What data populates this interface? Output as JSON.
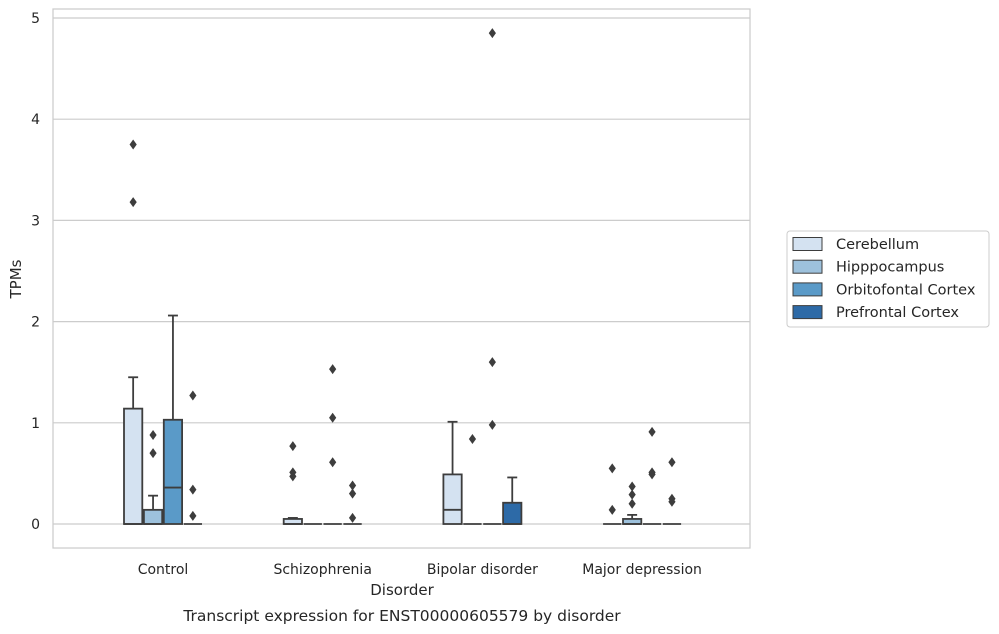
{
  "chart_data": {
    "type": "box",
    "title": "",
    "caption": "Transcript expression for ENST00000605579 by disorder",
    "xlabel": "Disorder",
    "ylabel": "TPMs",
    "ylim": [
      -0.23,
      5.1
    ],
    "yticks": [
      0,
      1,
      2,
      3,
      4,
      5
    ],
    "ytick_labels": [
      "0",
      "1",
      "2",
      "3",
      "4",
      "5"
    ],
    "grid": "horizontal",
    "legend_position": "right",
    "categories": [
      "Control",
      "Schizophrenia",
      "Bipolar disorder",
      "Major depression"
    ],
    "series": [
      {
        "name": "Cerebellum",
        "color": "#d4e2f1",
        "boxes": [
          {
            "q1": 0,
            "median": 0,
            "q3": 1.14,
            "whislo": 0,
            "whishi": 1.45,
            "fliers": [
              3.75,
              3.18
            ]
          },
          {
            "q1": 0,
            "median": 0,
            "q3": 0.05,
            "whislo": 0,
            "whishi": 0.06,
            "fliers": [
              0.77,
              0.51,
              0.47
            ]
          },
          {
            "q1": 0,
            "median": 0.14,
            "q3": 0.49,
            "whislo": 0,
            "whishi": 1.01,
            "fliers": []
          },
          {
            "q1": 0,
            "median": 0,
            "q3": 0,
            "whislo": 0,
            "whishi": 0,
            "fliers": [
              0.55,
              0.14
            ]
          }
        ]
      },
      {
        "name": "Hipppocampus",
        "color": "#9dc1dc",
        "boxes": [
          {
            "q1": 0,
            "median": 0,
            "q3": 0.14,
            "whislo": 0,
            "whishi": 0.28,
            "fliers": [
              0.88,
              0.7
            ]
          },
          {
            "q1": 0,
            "median": 0,
            "q3": 0,
            "whislo": 0,
            "whishi": 0,
            "fliers": []
          },
          {
            "q1": 0,
            "median": 0,
            "q3": 0,
            "whislo": 0,
            "whishi": 0,
            "fliers": [
              0.84
            ]
          },
          {
            "q1": 0,
            "median": 0,
            "q3": 0.05,
            "whislo": 0,
            "whishi": 0.09,
            "fliers": [
              0.37,
              0.29,
              0.2
            ]
          }
        ]
      },
      {
        "name": "Orbitofontal Cortex",
        "color": "#5a9ac8",
        "boxes": [
          {
            "q1": 0,
            "median": 0.36,
            "q3": 1.03,
            "whislo": 0,
            "whishi": 2.06,
            "fliers": []
          },
          {
            "q1": 0,
            "median": 0,
            "q3": 0,
            "whislo": 0,
            "whishi": 0,
            "fliers": [
              1.53,
              1.05,
              0.61
            ]
          },
          {
            "q1": 0,
            "median": 0,
            "q3": 0,
            "whislo": 0,
            "whishi": 0,
            "fliers": [
              4.85,
              1.6,
              0.98
            ]
          },
          {
            "q1": 0,
            "median": 0,
            "q3": 0,
            "whislo": 0,
            "whishi": 0,
            "fliers": [
              0.91,
              0.51,
              0.49
            ]
          }
        ]
      },
      {
        "name": "Prefrontal Cortex",
        "color": "#2d6aa7",
        "boxes": [
          {
            "q1": 0,
            "median": 0,
            "q3": 0,
            "whislo": 0,
            "whishi": 0,
            "fliers": [
              1.27,
              0.34,
              0.08
            ]
          },
          {
            "q1": 0,
            "median": 0,
            "q3": 0,
            "whislo": 0,
            "whishi": 0,
            "fliers": [
              0.38,
              0.3,
              0.06
            ]
          },
          {
            "q1": 0,
            "median": 0,
            "q3": 0.21,
            "whislo": 0,
            "whishi": 0.46,
            "fliers": []
          },
          {
            "q1": 0,
            "median": 0,
            "q3": 0,
            "whislo": 0,
            "whishi": 0,
            "fliers": [
              0.61,
              0.25,
              0.22
            ]
          }
        ]
      }
    ]
  }
}
